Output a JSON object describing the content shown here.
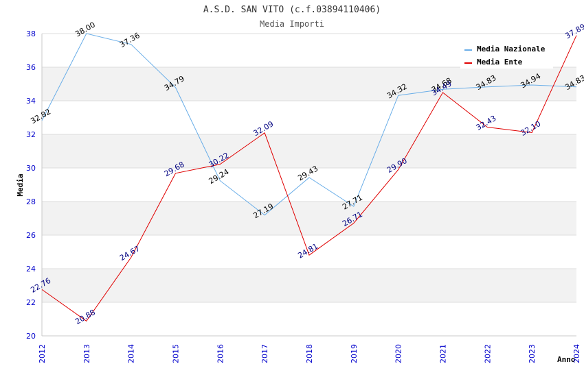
{
  "chart_data": {
    "type": "line",
    "title": "A.S.D. SAN VITO (c.f.03894110406)",
    "subtitle": "Media Importi",
    "xlabel": "Anno",
    "ylabel": "Media",
    "ylim": [
      20,
      38
    ],
    "yticks": [
      "20",
      "22",
      "24",
      "26",
      "28",
      "30",
      "32",
      "34",
      "36",
      "38"
    ],
    "categories": [
      "2012",
      "2013",
      "2014",
      "2015",
      "2016",
      "2017",
      "2018",
      "2019",
      "2020",
      "2021",
      "2022",
      "2023",
      "2024"
    ],
    "legend_position": "top-right",
    "series": [
      {
        "name": "Media Nazionale",
        "color": "#6aaee8",
        "values": [
          32.82,
          38.0,
          37.36,
          34.79,
          29.24,
          27.19,
          29.43,
          27.71,
          34.32,
          34.68,
          34.83,
          34.94,
          34.83
        ],
        "labels": [
          "32.82",
          "38.00",
          "37.36",
          "34.79",
          "29.24",
          "27.19",
          "29.43",
          "27.71",
          "34.32",
          "34.68",
          "34.83",
          "34.94",
          "34.83"
        ]
      },
      {
        "name": "Media Ente",
        "color": "#e00000",
        "values": [
          22.76,
          20.88,
          24.67,
          29.68,
          30.22,
          32.09,
          24.81,
          26.71,
          29.9,
          34.49,
          32.43,
          32.1,
          37.89
        ],
        "labels": [
          "22.76",
          "20.88",
          "24.67",
          "29.68",
          "30.22",
          "32.09",
          "24.81",
          "26.71",
          "29.90",
          "34.49",
          "32.43",
          "32.10",
          "37.89"
        ]
      }
    ]
  }
}
